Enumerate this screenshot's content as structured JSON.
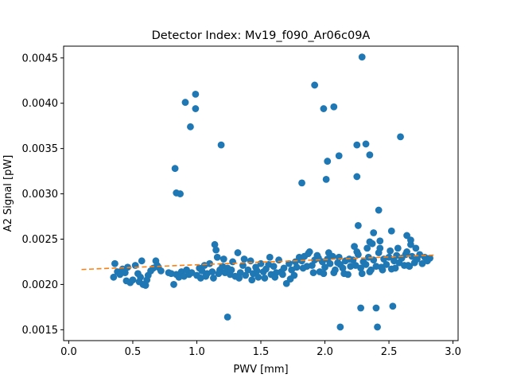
{
  "chart_data": {
    "type": "scatter",
    "title": "Detector Index: Mv19_f090_Ar06c09A",
    "xlabel": "PWV [mm]",
    "ylabel": "A2 Signal [pW]",
    "xlim": [
      -0.04,
      3.04
    ],
    "ylim": [
      0.00138,
      0.00463
    ],
    "xticks": [
      0.0,
      0.5,
      1.0,
      1.5,
      2.0,
      2.5,
      3.0
    ],
    "xtick_labels": [
      "0.0",
      "0.5",
      "1.0",
      "1.5",
      "2.0",
      "2.5",
      "3.0"
    ],
    "yticks": [
      0.0015,
      0.002,
      0.0025,
      0.003,
      0.0035,
      0.004,
      0.0045
    ],
    "ytick_labels": [
      "0.0015",
      "0.0020",
      "0.0025",
      "0.0030",
      "0.0035",
      "0.0040",
      "0.0045"
    ],
    "grid": false,
    "colors": {
      "points": "#1f77b4",
      "fit": "#ff7f0e"
    },
    "series": [
      {
        "name": "data",
        "kind": "scatter",
        "points": [
          [
            0.35,
            0.00208
          ],
          [
            0.36,
            0.00223
          ],
          [
            0.38,
            0.00214
          ],
          [
            0.4,
            0.00211
          ],
          [
            0.42,
            0.00217
          ],
          [
            0.44,
            0.00213
          ],
          [
            0.46,
            0.00219
          ],
          [
            0.48,
            0.00202
          ],
          [
            0.5,
            0.00205
          ],
          [
            0.52,
            0.00221
          ],
          [
            0.54,
            0.00212
          ],
          [
            0.56,
            0.00208
          ],
          [
            0.58,
            0.002
          ],
          [
            0.6,
            0.00199
          ],
          [
            0.62,
            0.0021
          ],
          [
            0.64,
            0.00215
          ],
          [
            0.66,
            0.00218
          ],
          [
            0.68,
            0.00226
          ],
          [
            0.7,
            0.00219
          ],
          [
            0.72,
            0.00215
          ],
          [
            0.45,
            0.00204
          ],
          [
            0.55,
            0.00203
          ],
          [
            0.57,
            0.00226
          ],
          [
            0.61,
            0.00205
          ],
          [
            0.69,
            0.00221
          ],
          [
            0.78,
            0.00213
          ],
          [
            0.8,
            0.00212
          ],
          [
            0.82,
            0.002
          ],
          [
            0.84,
            0.00211
          ],
          [
            0.86,
            0.00208
          ],
          [
            0.88,
            0.00214
          ],
          [
            0.9,
            0.00209
          ],
          [
            0.92,
            0.00216
          ],
          [
            0.94,
            0.00211
          ],
          [
            0.96,
            0.00213
          ],
          [
            1.0,
            0.0021
          ],
          [
            1.02,
            0.00218
          ],
          [
            1.04,
            0.00215
          ],
          [
            1.06,
            0.00221
          ],
          [
            1.08,
            0.00212
          ],
          [
            1.1,
            0.00223
          ],
          [
            1.12,
            0.00214
          ],
          [
            1.14,
            0.00244
          ],
          [
            1.15,
            0.00238
          ],
          [
            1.16,
            0.0023
          ],
          [
            1.18,
            0.00216
          ],
          [
            1.2,
            0.0022
          ],
          [
            1.22,
            0.00213
          ],
          [
            1.24,
            0.00218
          ],
          [
            1.26,
            0.00211
          ],
          [
            1.28,
            0.00225
          ],
          [
            1.3,
            0.00209
          ],
          [
            1.32,
            0.00235
          ],
          [
            1.34,
            0.00213
          ],
          [
            1.36,
            0.00221
          ],
          [
            1.38,
            0.0021
          ],
          [
            1.4,
            0.00216
          ],
          [
            1.42,
            0.00226
          ],
          [
            1.44,
            0.00212
          ],
          [
            1.46,
            0.00219
          ],
          [
            1.48,
            0.00208
          ],
          [
            1.5,
            0.00223
          ],
          [
            1.52,
            0.00214
          ],
          [
            1.54,
            0.00217
          ],
          [
            1.56,
            0.00222
          ],
          [
            1.58,
            0.00211
          ],
          [
            1.6,
            0.0022
          ],
          [
            1.62,
            0.00213
          ],
          [
            1.64,
            0.00227
          ],
          [
            1.66,
            0.00214
          ],
          [
            1.68,
            0.00218
          ],
          [
            1.7,
            0.00201
          ],
          [
            1.72,
            0.00223
          ],
          [
            1.74,
            0.00216
          ],
          [
            1.76,
            0.0021
          ],
          [
            1.78,
            0.00219
          ],
          [
            1.03,
            0.00207
          ],
          [
            1.07,
            0.00209
          ],
          [
            1.13,
            0.00207
          ],
          [
            1.17,
            0.00212
          ],
          [
            1.21,
            0.00228
          ],
          [
            1.27,
            0.00216
          ],
          [
            1.33,
            0.00207
          ],
          [
            1.37,
            0.00228
          ],
          [
            1.43,
            0.00205
          ],
          [
            1.47,
            0.00215
          ],
          [
            1.53,
            0.00207
          ],
          [
            1.57,
            0.0023
          ],
          [
            1.61,
            0.00208
          ],
          [
            1.67,
            0.00211
          ],
          [
            1.73,
            0.00206
          ],
          [
            1.77,
            0.00225
          ],
          [
            1.8,
            0.0023
          ],
          [
            1.82,
            0.00226
          ],
          [
            1.84,
            0.00231
          ],
          [
            1.86,
            0.0022
          ],
          [
            1.88,
            0.00236
          ],
          [
            1.9,
            0.00221
          ],
          [
            1.92,
            0.00227
          ],
          [
            1.94,
            0.00232
          ],
          [
            1.96,
            0.00214
          ],
          [
            1.98,
            0.00225
          ],
          [
            2.0,
            0.00219
          ],
          [
            2.02,
            0.00228
          ],
          [
            2.04,
            0.00223
          ],
          [
            2.06,
            0.00231
          ],
          [
            2.08,
            0.00216
          ],
          [
            2.1,
            0.00224
          ],
          [
            2.12,
            0.00222
          ],
          [
            2.14,
            0.00218
          ],
          [
            2.16,
            0.00226
          ],
          [
            2.18,
            0.00211
          ],
          [
            2.2,
            0.0022
          ],
          [
            1.83,
            0.00218
          ],
          [
            1.87,
            0.00234
          ],
          [
            1.91,
            0.00213
          ],
          [
            1.95,
            0.00229
          ],
          [
            1.99,
            0.00212
          ],
          [
            2.03,
            0.00235
          ],
          [
            2.07,
            0.00213
          ],
          [
            2.11,
            0.0023
          ],
          [
            2.15,
            0.00212
          ],
          [
            2.19,
            0.00228
          ],
          [
            2.22,
            0.00227
          ],
          [
            2.24,
            0.00221
          ],
          [
            2.26,
            0.00233
          ],
          [
            2.28,
            0.00218
          ],
          [
            2.3,
            0.00225
          ],
          [
            2.32,
            0.00222
          ],
          [
            2.34,
            0.0023
          ],
          [
            2.36,
            0.00216
          ],
          [
            2.38,
            0.00227
          ],
          [
            2.4,
            0.0022
          ],
          [
            2.42,
            0.00235
          ],
          [
            2.44,
            0.00219
          ],
          [
            2.46,
            0.00228
          ],
          [
            2.48,
            0.00222
          ],
          [
            2.5,
            0.0023
          ],
          [
            2.52,
            0.00217
          ],
          [
            2.54,
            0.00226
          ],
          [
            2.56,
            0.00232
          ],
          [
            2.58,
            0.00224
          ],
          [
            2.6,
            0.00229
          ],
          [
            2.62,
            0.00221
          ],
          [
            2.64,
            0.00236
          ],
          [
            2.66,
            0.0022
          ],
          [
            2.68,
            0.00231
          ],
          [
            2.7,
            0.00224
          ],
          [
            2.72,
            0.00228
          ],
          [
            2.74,
            0.00233
          ],
          [
            2.76,
            0.00223
          ],
          [
            2.78,
            0.0023
          ],
          [
            2.8,
            0.00226
          ],
          [
            2.82,
            0.00229
          ],
          [
            2.23,
            0.00242
          ],
          [
            2.25,
            0.00236
          ],
          [
            2.33,
            0.0024
          ],
          [
            2.37,
            0.00245
          ],
          [
            2.43,
            0.0024
          ],
          [
            2.51,
            0.00237
          ],
          [
            2.57,
            0.0024
          ],
          [
            2.63,
            0.00233
          ],
          [
            2.67,
            0.00244
          ],
          [
            2.71,
            0.0024
          ],
          [
            2.29,
            0.00212
          ],
          [
            2.35,
            0.00214
          ],
          [
            2.45,
            0.00216
          ],
          [
            2.55,
            0.00218
          ],
          [
            2.65,
            0.00221
          ],
          [
            0.83,
            0.00328
          ],
          [
            0.84,
            0.00301
          ],
          [
            0.87,
            0.003
          ],
          [
            0.91,
            0.00401
          ],
          [
            0.95,
            0.00374
          ],
          [
            0.99,
            0.0041
          ],
          [
            0.99,
            0.00394
          ],
          [
            1.19,
            0.00354
          ],
          [
            1.24,
            0.00164
          ],
          [
            1.82,
            0.00312
          ],
          [
            1.92,
            0.0042
          ],
          [
            1.99,
            0.00394
          ],
          [
            2.01,
            0.00316
          ],
          [
            2.02,
            0.00336
          ],
          [
            2.07,
            0.00396
          ],
          [
            2.11,
            0.00342
          ],
          [
            2.12,
            0.00153
          ],
          [
            2.25,
            0.00354
          ],
          [
            2.25,
            0.00319
          ],
          [
            2.26,
            0.00265
          ],
          [
            2.28,
            0.00174
          ],
          [
            2.29,
            0.00451
          ],
          [
            2.32,
            0.00355
          ],
          [
            2.35,
            0.00343
          ],
          [
            2.38,
            0.00257
          ],
          [
            2.4,
            0.00174
          ],
          [
            2.41,
            0.00153
          ],
          [
            2.42,
            0.00282
          ],
          [
            2.43,
            0.00248
          ],
          [
            2.52,
            0.00259
          ],
          [
            2.53,
            0.00176
          ],
          [
            2.59,
            0.00363
          ],
          [
            2.64,
            0.00254
          ],
          [
            2.67,
            0.00249
          ],
          [
            2.35,
            0.00247
          ]
        ]
      },
      {
        "name": "fit",
        "kind": "line",
        "style": "dashed",
        "x": [
          0.1,
          2.87
        ],
        "y": [
          0.002165,
          0.002325
        ]
      }
    ]
  }
}
